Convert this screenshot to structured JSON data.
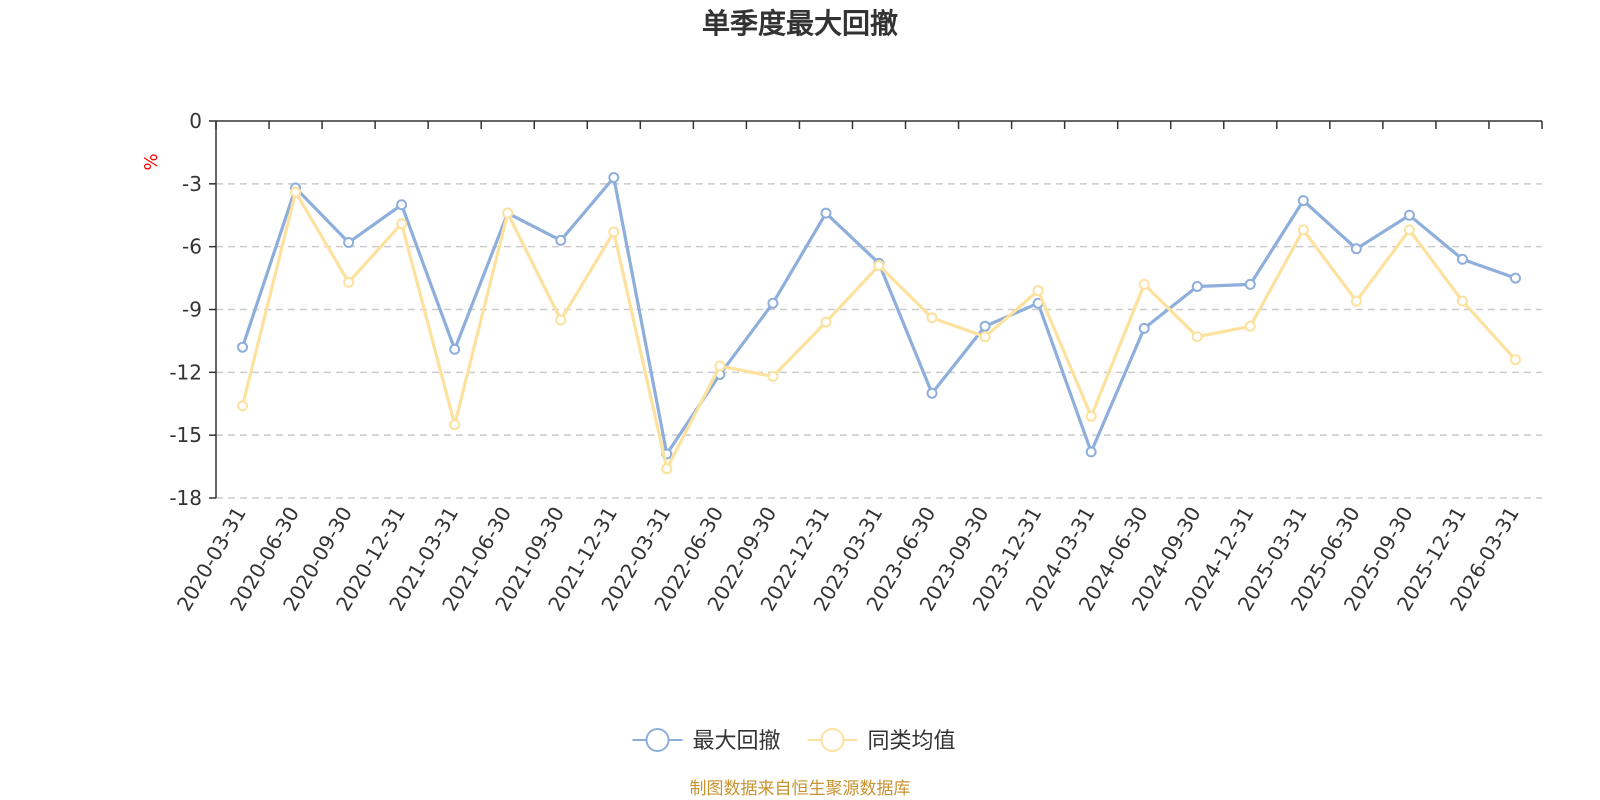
{
  "chart_data": {
    "type": "line",
    "title": "单季度最大回撤",
    "ylabel": "%",
    "xlabel": "",
    "ylim": [
      -18,
      0
    ],
    "yticks": [
      0,
      -3,
      -6,
      -9,
      -12,
      -15,
      -18
    ],
    "grid": true,
    "legend_position": "bottom-center",
    "categories": [
      "2020-03-31",
      "2020-06-30",
      "2020-09-30",
      "2020-12-31",
      "2021-03-31",
      "2021-06-30",
      "2021-09-30",
      "2021-12-31",
      "2022-03-31",
      "2022-06-30",
      "2022-09-30",
      "2022-12-31",
      "2023-03-31",
      "2023-06-30",
      "2023-09-30",
      "2023-12-31",
      "2024-03-31",
      "2024-06-30",
      "2024-09-30",
      "2024-12-31",
      "2025-03-31",
      "2025-06-30",
      "2025-09-30",
      "2025-12-31",
      "2026-03-31"
    ],
    "series": [
      {
        "name": "最大回撤",
        "color": "#8eaedb",
        "values": [
          -10.8,
          -3.2,
          -5.8,
          -4.0,
          -10.9,
          -4.4,
          -5.7,
          -2.7,
          -15.9,
          -12.1,
          -8.7,
          -4.4,
          -6.8,
          -13.0,
          -9.8,
          -8.7,
          -15.8,
          -9.9,
          -7.9,
          -7.8,
          -3.8,
          -6.1,
          -4.5,
          -6.6,
          -7.5
        ]
      },
      {
        "name": "同类均值",
        "color": "#fde19e",
        "values": [
          -13.6,
          -3.4,
          -7.7,
          -4.9,
          -14.5,
          -4.4,
          -9.5,
          -5.3,
          -16.6,
          -11.7,
          -12.2,
          -9.6,
          -6.9,
          -9.4,
          -10.3,
          -8.1,
          -14.1,
          -7.8,
          -10.3,
          -9.8,
          -5.2,
          -8.6,
          -5.2,
          -8.6,
          -11.4
        ]
      }
    ],
    "source": "制图数据来自恒生聚源数据库"
  }
}
